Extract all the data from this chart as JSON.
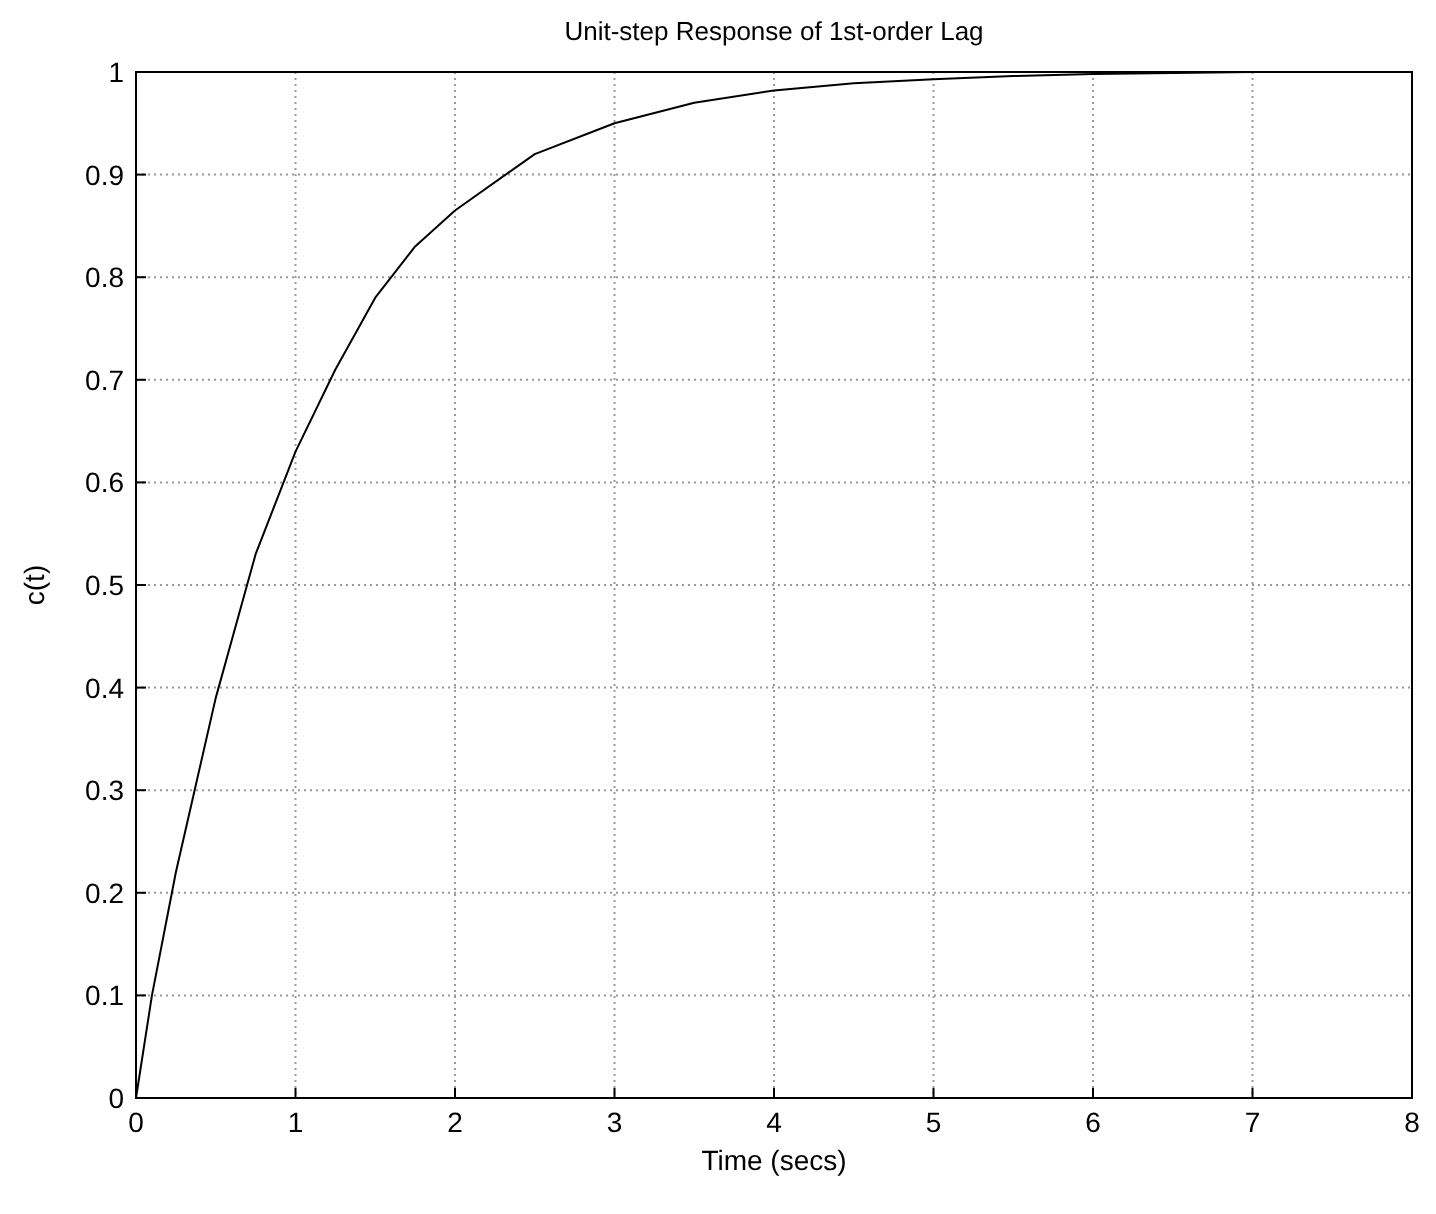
{
  "chart_data": {
    "type": "line",
    "title": "Unit-step Response of 1st-order Lag",
    "xlabel": "Time (secs)",
    "ylabel": "c(t)",
    "x": [
      0,
      0.1,
      0.25,
      0.5,
      0.75,
      1,
      1.25,
      1.5,
      1.75,
      2,
      2.5,
      3,
      3.5,
      4,
      4.5,
      5,
      5.5,
      6,
      6.5,
      7
    ],
    "series": [
      {
        "color": "#000000",
        "values": [
          0,
          0.1,
          0.22,
          0.39,
          0.53,
          0.63,
          0.71,
          0.78,
          0.83,
          0.865,
          0.92,
          0.95,
          0.97,
          0.982,
          0.989,
          0.993,
          0.996,
          0.998,
          0.999,
          1
        ]
      }
    ],
    "xlim": [
      0,
      8
    ],
    "xticks": [
      0,
      1,
      2,
      3,
      4,
      5,
      6,
      7,
      8
    ],
    "ylim": [
      0,
      1
    ],
    "yticks": [
      0,
      0.1,
      0.2,
      0.3,
      0.4,
      0.5,
      0.6,
      0.7,
      0.8,
      0.9,
      1
    ],
    "grid": true,
    "line_style": "solid",
    "marker": "none"
  }
}
